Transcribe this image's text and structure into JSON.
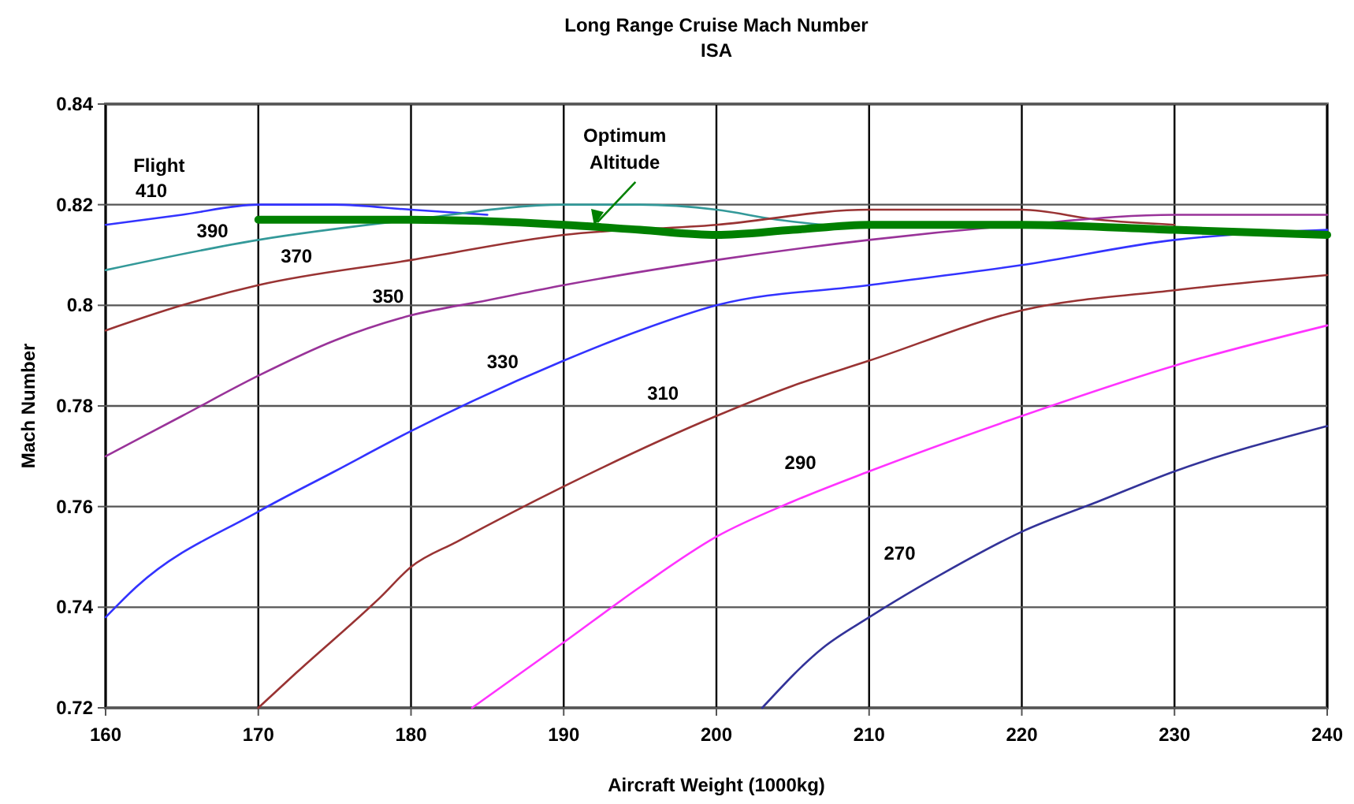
{
  "chart_data": {
    "type": "line",
    "title": "Long Range Cruise Mach Number",
    "subtitle": "ISA",
    "xlabel": "Aircraft Weight (1000kg)",
    "ylabel": "Mach Number",
    "annotations": [
      "Flight"
    ],
    "xlim": [
      160,
      240
    ],
    "xticks": [
      160,
      170,
      180,
      190,
      200,
      210,
      220,
      230,
      240
    ],
    "ylim": [
      0.72,
      0.84
    ],
    "yticks": [
      {
        "value": 0.72,
        "label": "0.72"
      },
      {
        "value": 0.74,
        "label": "0.74"
      },
      {
        "value": 0.76,
        "label": "0.76"
      },
      {
        "value": 0.78,
        "label": "0.78"
      },
      {
        "value": 0.8,
        "label": "0.8"
      },
      {
        "value": 0.82,
        "label": "0.82"
      },
      {
        "value": 0.84,
        "label": "0.84"
      }
    ],
    "grid": true,
    "marker": "none",
    "line_style": "solid",
    "series": [
      {
        "name": "410",
        "color": "#3333ff",
        "x": [
          160,
          165,
          170,
          175,
          180,
          185
        ],
        "values": [
          0.816,
          0.818,
          0.82,
          0.82,
          0.819,
          0.818
        ]
      },
      {
        "name": "390",
        "color": "#339999",
        "x": [
          160,
          170,
          180,
          190,
          195,
          200,
          204,
          207
        ],
        "values": [
          0.807,
          0.813,
          0.817,
          0.82,
          0.82,
          0.819,
          0.817,
          0.816
        ]
      },
      {
        "name": "370",
        "color": "#993333",
        "x": [
          160,
          165,
          170,
          180,
          190,
          200,
          210,
          215,
          220,
          225,
          230
        ],
        "values": [
          0.795,
          0.8,
          0.804,
          0.809,
          0.814,
          0.816,
          0.819,
          0.819,
          0.819,
          0.817,
          0.816
        ]
      },
      {
        "name": "350",
        "color": "#993399",
        "x": [
          160,
          165,
          170,
          175,
          180,
          185,
          190,
          200,
          210,
          220,
          230,
          240
        ],
        "values": [
          0.77,
          0.778,
          0.786,
          0.793,
          0.798,
          0.801,
          0.804,
          0.809,
          0.813,
          0.816,
          0.818,
          0.818
        ]
      },
      {
        "name": "330",
        "color": "#3333ff",
        "x": [
          160,
          162,
          170,
          175,
          180,
          190,
          195,
          200,
          210,
          220,
          230,
          240
        ],
        "values": [
          0.738,
          0.744,
          0.759,
          0.767,
          0.775,
          0.789,
          0.795,
          0.8,
          0.804,
          0.808,
          0.813,
          0.815
        ]
      },
      {
        "name": "310",
        "color": "#993333",
        "x": [
          170,
          172.5,
          178,
          180,
          183,
          190,
          200,
          205,
          210,
          220,
          230,
          240
        ],
        "values": [
          0.72,
          0.727,
          0.742,
          0.748,
          0.753,
          0.764,
          0.778,
          0.784,
          0.789,
          0.799,
          0.803,
          0.806
        ]
      },
      {
        "name": "290",
        "color": "#ff33ff",
        "x": [
          184,
          190,
          195,
          200,
          205,
          210,
          220,
          230,
          240
        ],
        "values": [
          0.72,
          0.733,
          0.744,
          0.754,
          0.761,
          0.767,
          0.778,
          0.788,
          0.796
        ]
      },
      {
        "name": "270",
        "color": "#333399",
        "x": [
          203,
          207,
          210,
          215,
          220,
          225,
          230,
          240
        ],
        "values": [
          0.72,
          0.732,
          0.738,
          0.747,
          0.755,
          0.761,
          0.767,
          0.776
        ]
      },
      {
        "name": "Optimum Altitude",
        "color": "#008000",
        "x": [
          170,
          180,
          190,
          195,
          200,
          205,
          210,
          220,
          230,
          240
        ],
        "values": [
          0.817,
          0.817,
          0.816,
          0.815,
          0.814,
          0.815,
          0.816,
          0.816,
          0.815,
          0.814
        ]
      }
    ]
  }
}
